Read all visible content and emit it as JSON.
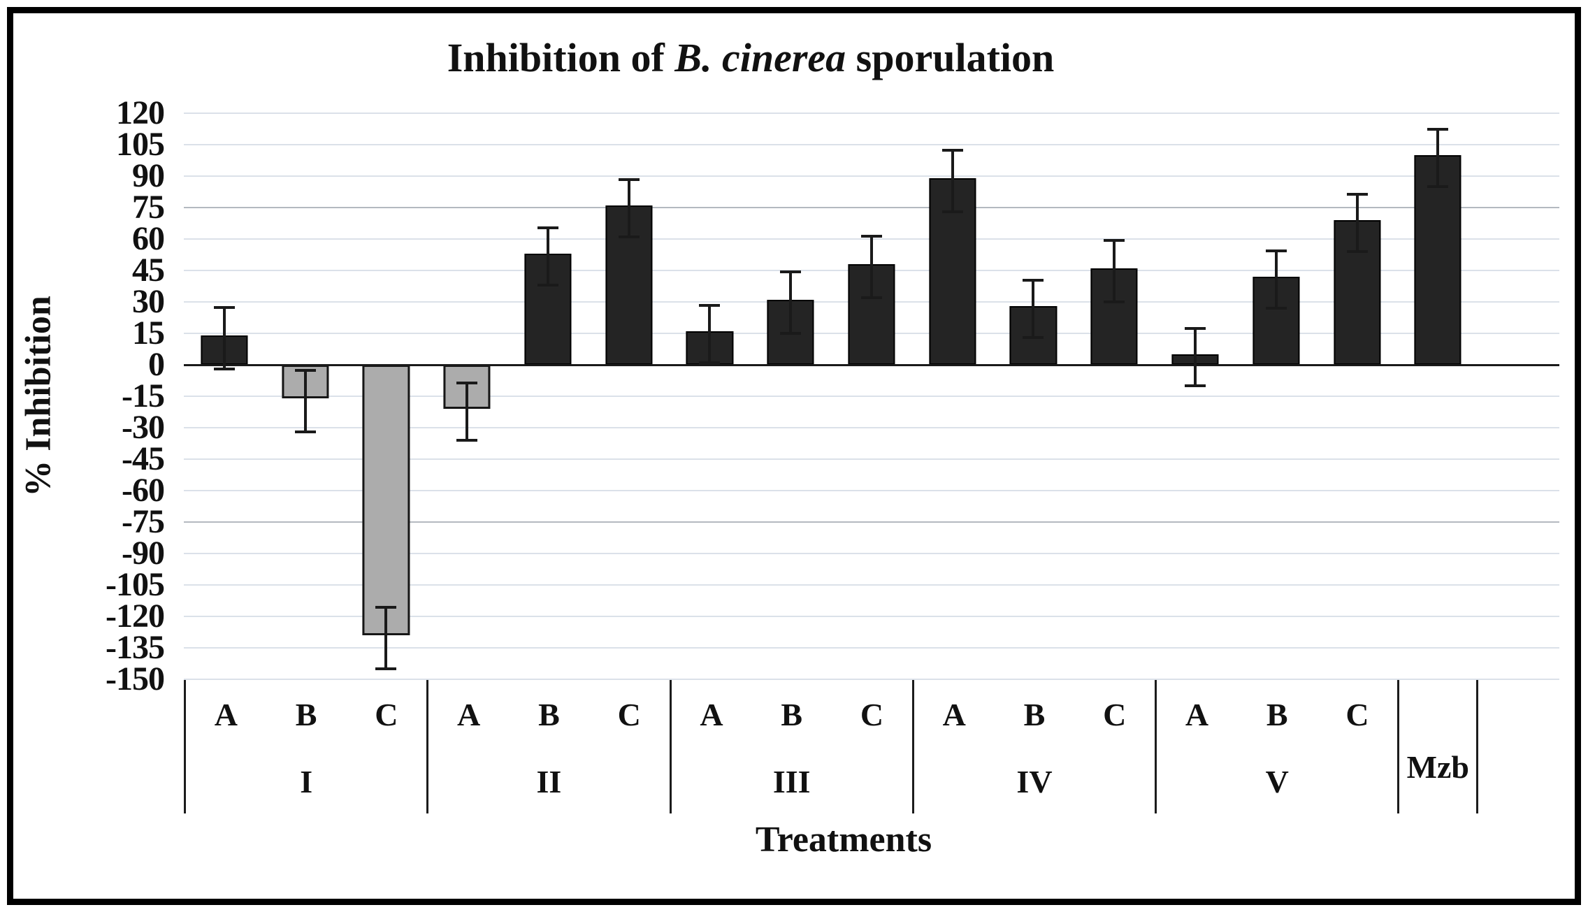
{
  "title": {
    "prefix": "Inhibition of ",
    "italic": "B. cinerea",
    "suffix": " sporulation",
    "full": "Inhibition of B. cinerea sporulation"
  },
  "chart_data": {
    "type": "bar",
    "title": "Inhibition of B. cinerea sporulation",
    "ylabel": "% Inhibition",
    "xlabel": "Treatments",
    "ylim": [
      -150,
      120
    ],
    "ytick_step": 15,
    "grid": true,
    "emphasized_gridlines": [
      75,
      -75
    ],
    "legend": "none",
    "error_bars": true,
    "colors": {
      "dark": "#242424",
      "gray": "#acacac"
    },
    "groups": [
      {
        "label": "I",
        "bars": [
          {
            "label": "A",
            "value": 14,
            "error": 14,
            "color": "dark"
          },
          {
            "label": "B",
            "value": -16,
            "error": 14,
            "color": "gray"
          },
          {
            "label": "C",
            "value": -129,
            "error": 14,
            "color": "gray"
          }
        ]
      },
      {
        "label": "II",
        "bars": [
          {
            "label": "A",
            "value": -21,
            "error": 13,
            "color": "gray"
          },
          {
            "label": "B",
            "value": 53,
            "error": 13,
            "color": "dark"
          },
          {
            "label": "C",
            "value": 76,
            "error": 13,
            "color": "dark"
          }
        ]
      },
      {
        "label": "III",
        "bars": [
          {
            "label": "A",
            "value": 16,
            "error": 13,
            "color": "dark"
          },
          {
            "label": "B",
            "value": 31,
            "error": 14,
            "color": "dark"
          },
          {
            "label": "C",
            "value": 48,
            "error": 14,
            "color": "dark"
          }
        ]
      },
      {
        "label": "IV",
        "bars": [
          {
            "label": "A",
            "value": 89,
            "error": 14,
            "color": "dark"
          },
          {
            "label": "B",
            "value": 28,
            "error": 13,
            "color": "dark"
          },
          {
            "label": "C",
            "value": 46,
            "error": 14,
            "color": "dark"
          }
        ]
      },
      {
        "label": "V",
        "bars": [
          {
            "label": "A",
            "value": 5,
            "error": 13,
            "color": "dark"
          },
          {
            "label": "B",
            "value": 42,
            "error": 13,
            "color": "dark"
          },
          {
            "label": "C",
            "value": 69,
            "error": 13,
            "color": "dark"
          }
        ]
      },
      {
        "label": "Mzb",
        "bars": [
          {
            "label": "",
            "value": 100,
            "error": 13,
            "color": "dark"
          }
        ]
      }
    ]
  }
}
